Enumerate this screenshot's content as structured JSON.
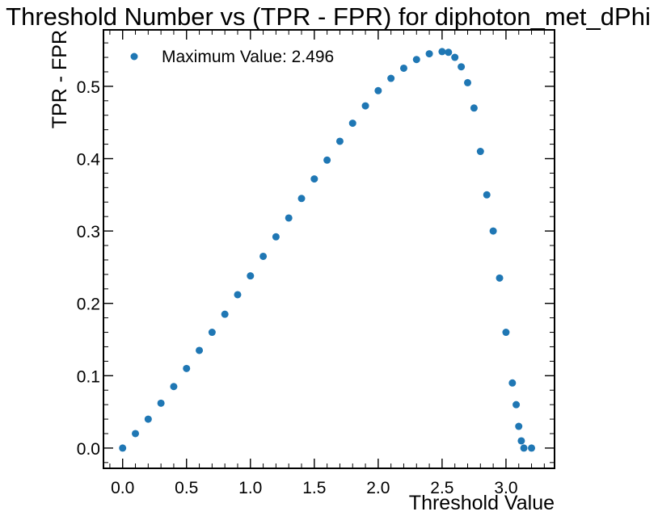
{
  "chart_data": {
    "type": "scatter",
    "title": "Threshold Number vs (TPR - FPR) for diphoton_met_dPhi",
    "xlabel": "Threshold Value",
    "ylabel": "TPR - FPR",
    "xlim": [
      -0.15,
      3.38
    ],
    "ylim": [
      -0.028,
      0.578
    ],
    "xticks": [
      "0.0",
      "0.5",
      "1.0",
      "1.5",
      "2.0",
      "2.5",
      "3.0"
    ],
    "yticks": [
      "0.0",
      "0.1",
      "0.2",
      "0.3",
      "0.4",
      "0.5"
    ],
    "grid": false,
    "legend_position": "top-left",
    "series": [
      {
        "name": "Maximum Value: 2.496",
        "color": "#1f77b4",
        "marker": "circle",
        "points": [
          [
            0.0,
            0.0
          ],
          [
            0.1,
            0.02
          ],
          [
            0.2,
            0.04
          ],
          [
            0.3,
            0.062
          ],
          [
            0.4,
            0.085
          ],
          [
            0.5,
            0.11
          ],
          [
            0.6,
            0.135
          ],
          [
            0.7,
            0.16
          ],
          [
            0.8,
            0.185
          ],
          [
            0.9,
            0.212
          ],
          [
            1.0,
            0.238
          ],
          [
            1.1,
            0.265
          ],
          [
            1.2,
            0.292
          ],
          [
            1.3,
            0.318
          ],
          [
            1.4,
            0.345
          ],
          [
            1.5,
            0.372
          ],
          [
            1.6,
            0.398
          ],
          [
            1.7,
            0.424
          ],
          [
            1.8,
            0.449
          ],
          [
            1.9,
            0.473
          ],
          [
            2.0,
            0.494
          ],
          [
            2.1,
            0.511
          ],
          [
            2.2,
            0.525
          ],
          [
            2.3,
            0.537
          ],
          [
            2.4,
            0.545
          ],
          [
            2.5,
            0.548
          ],
          [
            2.55,
            0.547
          ],
          [
            2.6,
            0.54
          ],
          [
            2.65,
            0.527
          ],
          [
            2.7,
            0.505
          ],
          [
            2.75,
            0.47
          ],
          [
            2.8,
            0.41
          ],
          [
            2.85,
            0.35
          ],
          [
            2.9,
            0.3
          ],
          [
            2.95,
            0.235
          ],
          [
            3.0,
            0.16
          ],
          [
            3.05,
            0.09
          ],
          [
            3.08,
            0.06
          ],
          [
            3.1,
            0.03
          ],
          [
            3.12,
            0.01
          ],
          [
            3.14,
            0.0
          ],
          [
            3.2,
            0.0
          ]
        ]
      }
    ]
  }
}
